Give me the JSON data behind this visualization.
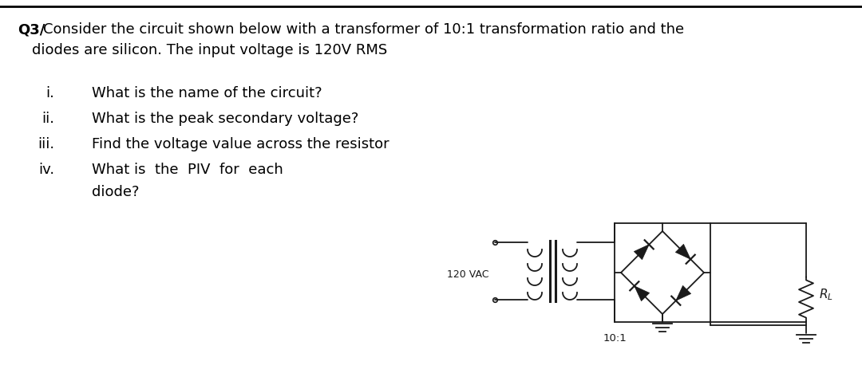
{
  "bg_color": "#ffffff",
  "text_color": "#000000",
  "font_size_title": 13.0,
  "font_size_body": 13.0,
  "circuit_label_vac": "120 VAC",
  "circuit_label_ratio": "10:1",
  "circuit_label_rl": "$R_L$",
  "title_bold": "Q3/",
  "title_rest": "Consider the circuit shown below with a transformer of 10:1 transformation ratio and the",
  "title_line2": "diodes are silicon. The input voltage is 120V RMS",
  "q1_num": "i.",
  "q1_txt": "What is the name of the circuit?",
  "q2_num": "ii.",
  "q2_txt": "What is the peak secondary voltage?",
  "q3_num": "iii.",
  "q3_txt": "Find the voltage value across the resistor",
  "q4_num": "iv.",
  "q4_txt": "What is  the  PIV  for  each",
  "q4_cont": "diode?"
}
